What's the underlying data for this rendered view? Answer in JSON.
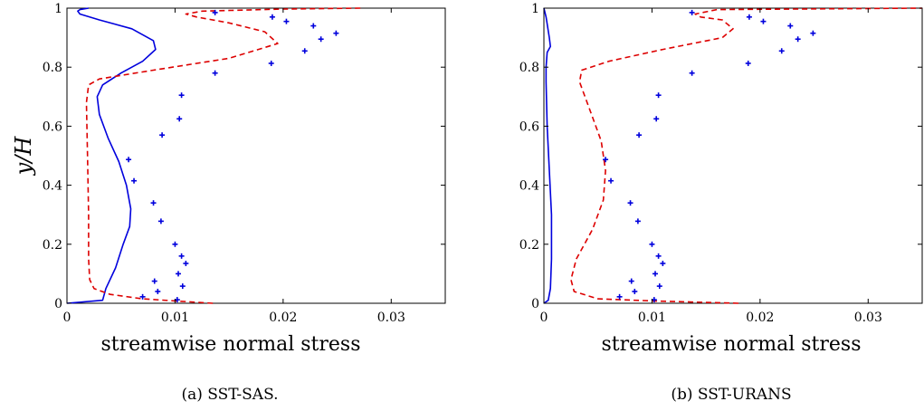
{
  "chart_data": [
    {
      "type": "line",
      "caption": "(a) SST-SAS.",
      "xlabel": "streamwise normal stress",
      "ylabel": "y/H",
      "xlim": [
        0,
        0.035
      ],
      "ylim": [
        0,
        1
      ],
      "xticks": [
        0,
        0.01,
        0.02,
        0.03
      ],
      "xtick_labels": [
        "0",
        "0.01",
        "0.02",
        "0.03"
      ],
      "yticks": [
        0,
        0.2,
        0.4,
        0.6,
        0.8,
        1
      ],
      "ytick_labels": [
        "0",
        "0.2",
        "0.4",
        "0.6",
        "0.8",
        "1"
      ],
      "grid": false,
      "series": [
        {
          "style": "solid",
          "color": "#0000dd",
          "x": [
            0.0,
            0.0033,
            0.0036,
            0.0045,
            0.0052,
            0.0058,
            0.0059,
            0.0055,
            0.0048,
            0.0038,
            0.003,
            0.0028,
            0.0033,
            0.005,
            0.007,
            0.0082,
            0.008,
            0.006,
            0.003,
            0.0012,
            0.001,
            0.0012,
            0.002
          ],
          "y": [
            0.0,
            0.01,
            0.05,
            0.12,
            0.2,
            0.26,
            0.32,
            0.4,
            0.48,
            0.56,
            0.64,
            0.7,
            0.74,
            0.78,
            0.82,
            0.86,
            0.89,
            0.93,
            0.96,
            0.98,
            0.99,
            0.995,
            1.0
          ]
        },
        {
          "style": "dashed",
          "color": "#dd0000",
          "x": [
            0.0135,
            0.01,
            0.007,
            0.004,
            0.0025,
            0.0021,
            0.002,
            0.002,
            0.0019,
            0.0018,
            0.002,
            0.003,
            0.008,
            0.015,
            0.0195,
            0.0183,
            0.015,
            0.012,
            0.011,
            0.0125,
            0.02,
            0.0272
          ],
          "y": [
            0.0,
            0.008,
            0.015,
            0.03,
            0.05,
            0.08,
            0.15,
            0.3,
            0.5,
            0.68,
            0.74,
            0.76,
            0.79,
            0.83,
            0.88,
            0.92,
            0.95,
            0.97,
            0.98,
            0.99,
            0.997,
            1.0
          ]
        },
        {
          "style": "markers",
          "marker": "+",
          "color": "#0000dd",
          "x": [
            0.0137,
            0.019,
            0.0203,
            0.0228,
            0.0235,
            0.0249,
            0.022,
            0.0189,
            0.0137,
            0.0106,
            0.0104,
            0.0088,
            0.0057,
            0.0062,
            0.008,
            0.0087,
            0.01,
            0.0106,
            0.011,
            0.0103,
            0.0107,
            0.0081,
            0.0084,
            0.007,
            0.0102
          ],
          "y": [
            0.985,
            0.97,
            0.955,
            0.94,
            0.895,
            0.915,
            0.855,
            0.813,
            0.78,
            0.705,
            0.625,
            0.57,
            0.487,
            0.415,
            0.34,
            0.278,
            0.2,
            0.16,
            0.135,
            0.1,
            0.058,
            0.075,
            0.04,
            0.022,
            0.012
          ]
        }
      ]
    },
    {
      "type": "line",
      "caption": "(b) SST-URANS",
      "xlabel": "streamwise normal stress",
      "ylabel": "",
      "xlim": [
        0,
        0.035
      ],
      "ylim": [
        0,
        1
      ],
      "xticks": [
        0,
        0.01,
        0.02,
        0.03
      ],
      "xtick_labels": [
        "0",
        "0.01",
        "0.02",
        "0.03"
      ],
      "yticks": [
        0,
        0.2,
        0.4,
        0.6,
        0.8,
        1
      ],
      "ytick_labels": [
        "0",
        "0.2",
        "0.4",
        "0.6",
        "0.8",
        "1"
      ],
      "grid": false,
      "series": [
        {
          "style": "solid",
          "color": "#0000dd",
          "x": [
            0.0,
            0.0004,
            0.0006,
            0.0007,
            0.0007,
            0.0005,
            0.0003,
            0.0002,
            0.0002,
            0.0003,
            0.0006,
            0.0005,
            0.0002,
            0.0
          ],
          "y": [
            0.0,
            0.01,
            0.05,
            0.15,
            0.3,
            0.45,
            0.6,
            0.75,
            0.8,
            0.85,
            0.87,
            0.9,
            0.97,
            1.0
          ]
        },
        {
          "style": "dashed",
          "color": "#dd0000",
          "x": [
            0.018,
            0.01,
            0.005,
            0.0028,
            0.0025,
            0.003,
            0.0045,
            0.0055,
            0.0057,
            0.0053,
            0.0043,
            0.0033,
            0.0035,
            0.006,
            0.011,
            0.0165,
            0.0175,
            0.0165,
            0.0145,
            0.014,
            0.016,
            0.035
          ],
          "y": [
            0.0,
            0.008,
            0.015,
            0.04,
            0.08,
            0.15,
            0.25,
            0.35,
            0.45,
            0.55,
            0.65,
            0.75,
            0.79,
            0.82,
            0.86,
            0.9,
            0.93,
            0.96,
            0.97,
            0.98,
            0.995,
            1.0
          ]
        },
        {
          "style": "markers",
          "marker": "+",
          "color": "#0000dd",
          "x": [
            0.0137,
            0.019,
            0.0203,
            0.0228,
            0.0235,
            0.0249,
            0.022,
            0.0189,
            0.0137,
            0.0106,
            0.0104,
            0.0088,
            0.0057,
            0.0062,
            0.008,
            0.0087,
            0.01,
            0.0106,
            0.011,
            0.0103,
            0.0107,
            0.0081,
            0.0084,
            0.007,
            0.0102
          ],
          "y": [
            0.985,
            0.97,
            0.955,
            0.94,
            0.895,
            0.915,
            0.855,
            0.813,
            0.78,
            0.705,
            0.625,
            0.57,
            0.487,
            0.415,
            0.34,
            0.278,
            0.2,
            0.16,
            0.135,
            0.1,
            0.058,
            0.075,
            0.04,
            0.022,
            0.012
          ]
        }
      ]
    }
  ]
}
